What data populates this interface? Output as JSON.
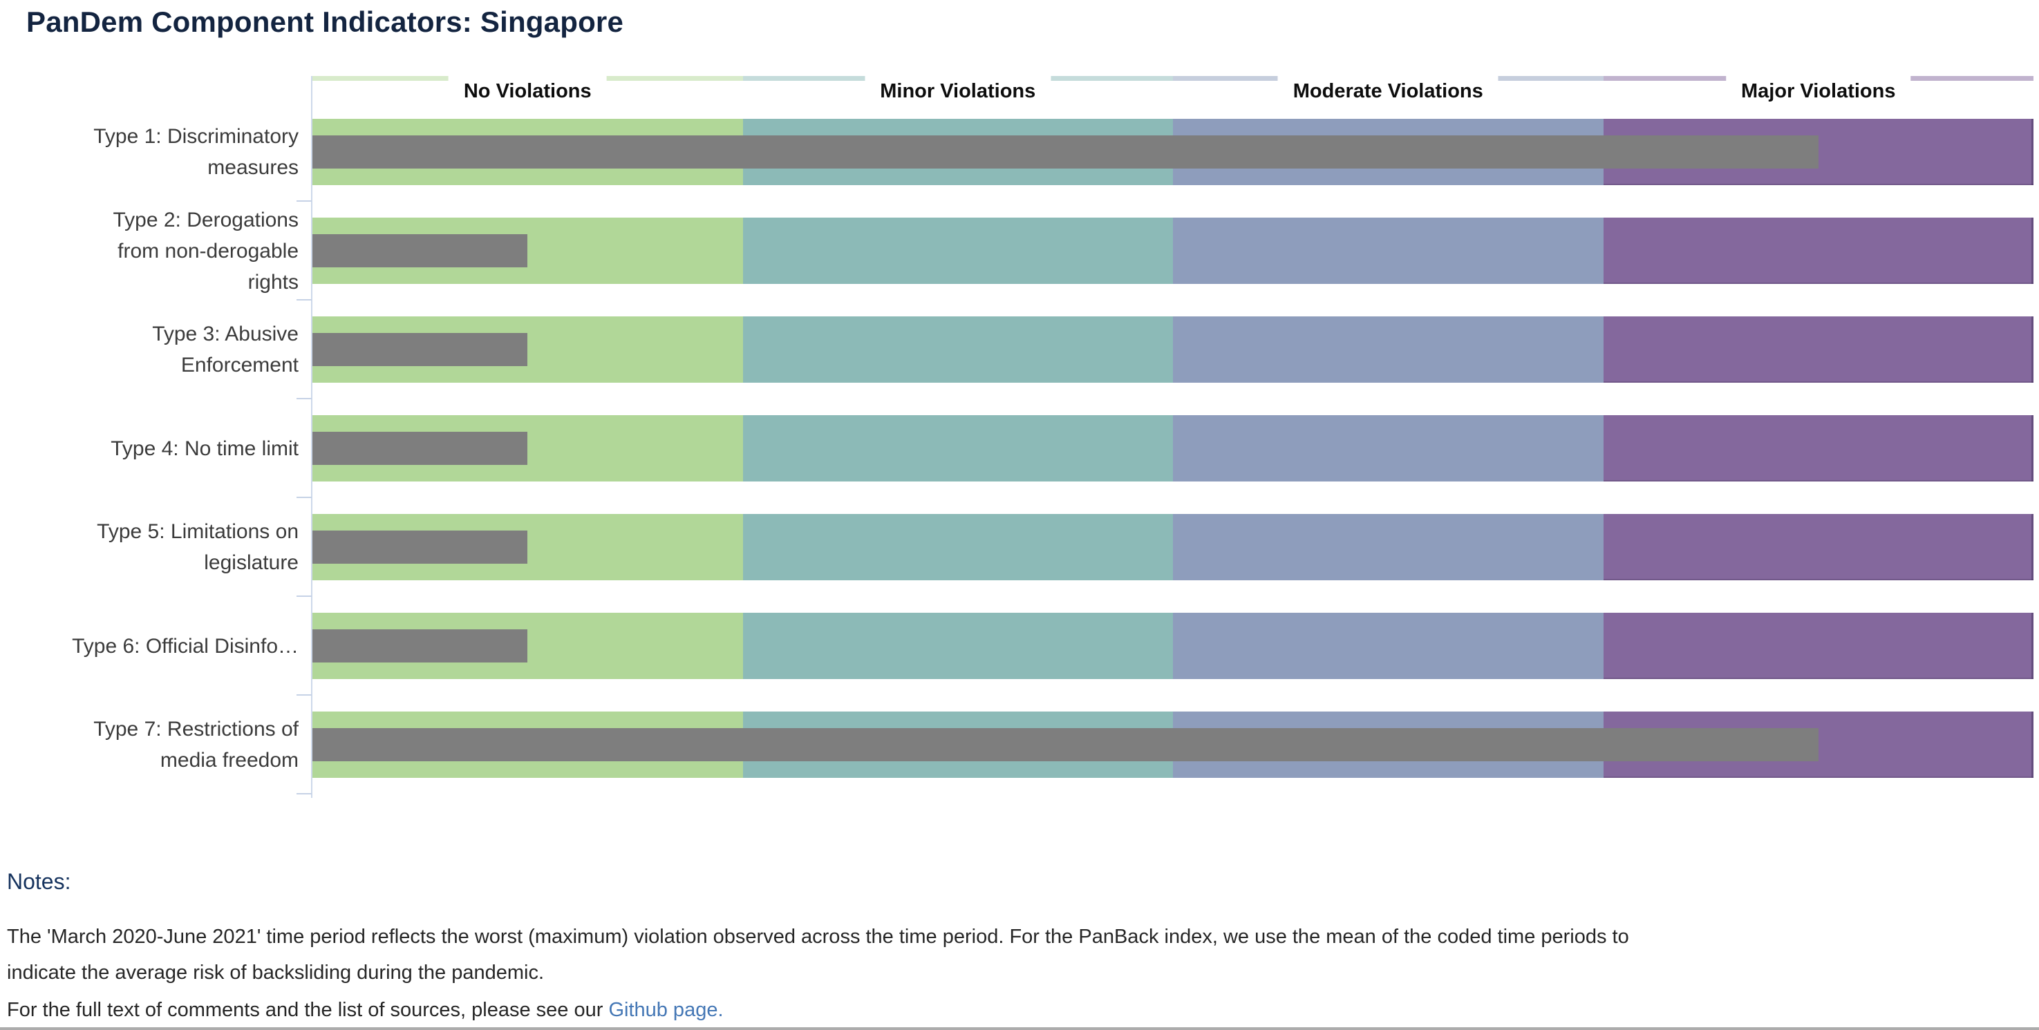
{
  "title": "PanDem Component Indicators: Singapore",
  "chart_data": {
    "type": "bar",
    "orientation": "horizontal",
    "title": "PanDem Component Indicators: Singapore",
    "categories": [
      "Type 1: Discriminatory\nmeasures",
      "Type 2: Derogations\nfrom non-derogable\nrights",
      "Type 3: Abusive\nEnforcement",
      "Type 4: No time limit",
      "Type 5: Limitations on\nlegislature",
      "Type 6: Official Disinfo…",
      "Type 7: Restrictions of\nmedia freedom"
    ],
    "values": [
      3.5,
      0.5,
      0.5,
      0.5,
      0.5,
      0.5,
      3.5
    ],
    "xlim": [
      0,
      4
    ],
    "grid": false,
    "bar_color": "#7e7e7e",
    "axis_color": "#cdd8ea",
    "zones": [
      {
        "label": "No Violations",
        "color": "#b1d798",
        "range": [
          0,
          1
        ]
      },
      {
        "label": "Minor Violations",
        "color": "#8cbab7",
        "range": [
          1,
          2
        ]
      },
      {
        "label": "Moderate Violations",
        "color": "#8e9dbc",
        "range": [
          2,
          3
        ]
      },
      {
        "label": "Major Violations",
        "color": "#84689d",
        "range": [
          3,
          4
        ]
      }
    ]
  },
  "notes": {
    "heading": "Notes:",
    "paragraph": "The 'March 2020-June 2021' time period reflects the worst (maximum) violation observed across the time period. For the PanBack index, we use the mean of the coded time periods to\nindicate the average risk of backsliding during the pandemic.",
    "sources_prefix": "For the full text of comments and the list of sources, please see our ",
    "link_text": "Github page."
  }
}
